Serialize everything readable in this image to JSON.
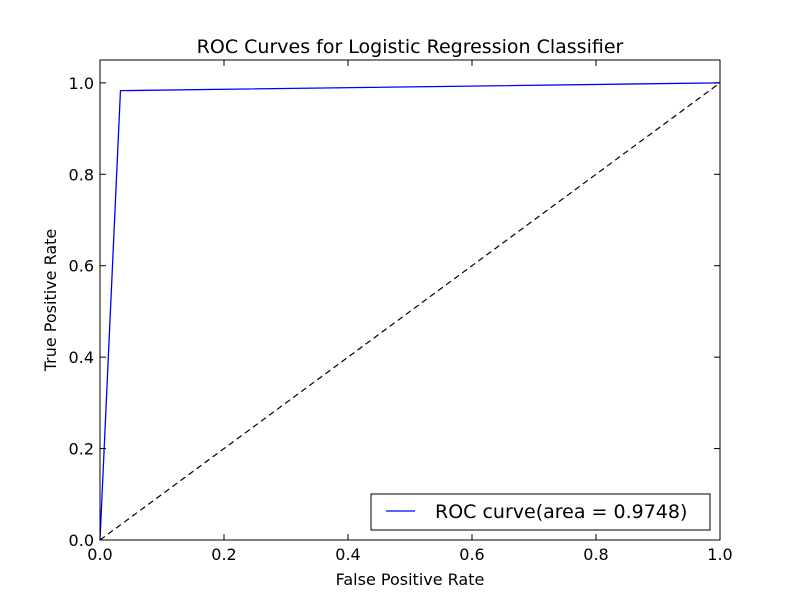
{
  "chart_data": {
    "type": "line",
    "title": "ROC Curves for Logistic Regression Classifier",
    "xlabel": "False Positive Rate",
    "ylabel": "True Positive Rate",
    "xlim": [
      0.0,
      1.0
    ],
    "ylim": [
      0.0,
      1.05
    ],
    "xticks": [
      "0.0",
      "0.2",
      "0.4",
      "0.6",
      "0.8",
      "1.0"
    ],
    "yticks": [
      "0.0",
      "0.2",
      "0.4",
      "0.6",
      "0.8",
      "1.0"
    ],
    "grid": false,
    "legend_position": "lower-right",
    "series": [
      {
        "name": "ROC curve(area = 0.9748)",
        "color": "#0000ff",
        "style": "solid",
        "x": [
          0.0,
          0.033,
          1.0
        ],
        "y": [
          0.0,
          0.983,
          1.0
        ]
      },
      {
        "color": "#000000",
        "style": "dashed",
        "x": [
          0.0,
          1.0
        ],
        "y": [
          0.0,
          1.0
        ]
      }
    ]
  }
}
